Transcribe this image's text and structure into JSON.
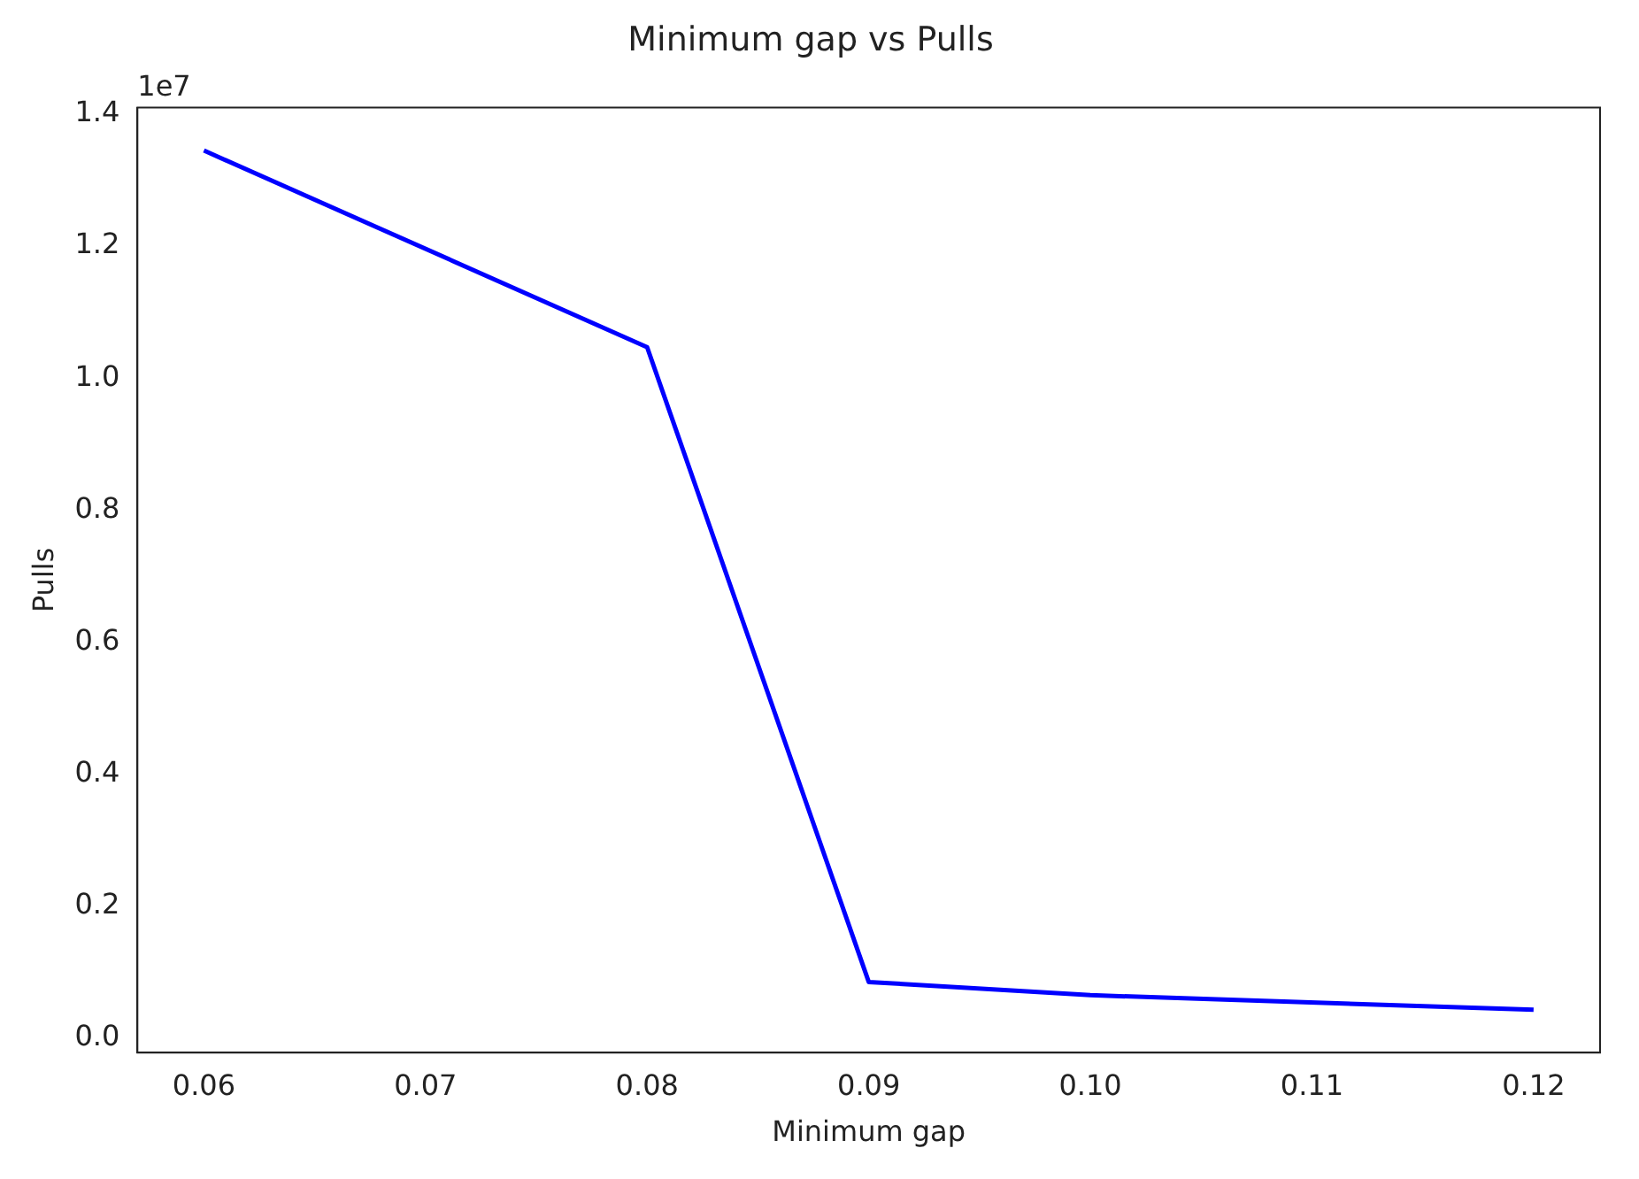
{
  "chart_data": {
    "type": "line",
    "title": "Minimum gap vs Pulls",
    "xlabel": "Minimum gap",
    "ylabel": "Pulls",
    "x": [
      0.06,
      0.08,
      0.09,
      0.1,
      0.12
    ],
    "series": [
      {
        "color": "#0000ff",
        "values": [
          1.345,
          1.047,
          0.085,
          0.065,
          0.043
        ]
      }
    ],
    "xlim": [
      0.057,
      0.123
    ],
    "xticks": [
      0.06,
      0.07,
      0.08,
      0.09,
      {
        "value": 0.1,
        "label": "0.10"
      },
      0.11,
      0.12
    ],
    "ylim": [
      -0.022,
      1.41
    ],
    "yticks": [
      {
        "value": 0,
        "label": "0.0"
      },
      0.2,
      0.4,
      0.6,
      0.8,
      {
        "value": 1,
        "label": "1.0"
      },
      1.2,
      1.4
    ],
    "annotations": [
      "1e7"
    ],
    "grid": false,
    "legend": false
  }
}
